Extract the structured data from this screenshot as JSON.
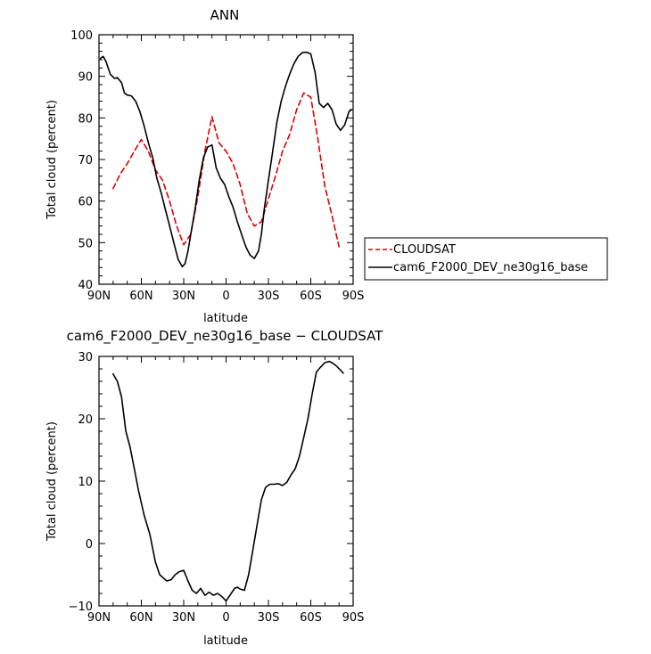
{
  "chart_data": [
    {
      "type": "line",
      "title": "ANN",
      "xlabel": "latitude",
      "ylabel": "Total cloud (percent)",
      "xlim": [
        90,
        -90
      ],
      "ylim": [
        40,
        100
      ],
      "xticks": [
        90,
        60,
        30,
        0,
        -30,
        -60,
        -90
      ],
      "xtick_labels": [
        "90N",
        "60N",
        "30N",
        "0",
        "30S",
        "60S",
        "90S"
      ],
      "yticks": [
        40,
        50,
        60,
        70,
        80,
        90,
        100
      ],
      "ytick_labels": [
        "40",
        "50",
        "60",
        "70",
        "80",
        "90",
        "100"
      ],
      "grid": false,
      "legend_position": "right-outside",
      "series": [
        {
          "name": "CLOUDSAT",
          "color": "#dd0000",
          "dash": "dashed",
          "x": [
            80,
            75,
            70,
            65,
            60,
            55,
            50,
            45,
            40,
            35,
            30,
            25,
            20,
            15,
            10,
            5,
            0,
            -5,
            -10,
            -15,
            -20,
            -25,
            -30,
            -35,
            -40,
            -45,
            -50,
            -55,
            -60,
            -65,
            -70,
            -75,
            -80
          ],
          "y": [
            63,
            66.5,
            69,
            72,
            74.8,
            72,
            67.5,
            65,
            60,
            54,
            49.5,
            52,
            61,
            72,
            80.3,
            74,
            72,
            69,
            64,
            57,
            54,
            55,
            60.5,
            66,
            72,
            76,
            82,
            86,
            85,
            75,
            63.5,
            56.5,
            49
          ]
        },
        {
          "name": "cam6_F2000_DEV_ne30g16_base",
          "color": "#000000",
          "dash": "solid",
          "x": [
            89,
            87,
            85,
            82,
            79,
            77,
            74,
            72,
            70,
            67,
            64,
            61,
            58,
            55,
            52,
            49,
            46,
            43,
            40,
            37,
            34,
            31,
            29,
            27,
            25,
            22,
            19,
            16,
            13,
            10,
            7,
            4,
            1,
            -2,
            -5,
            -8,
            -11,
            -14,
            -17,
            -20,
            -23,
            -25,
            -27,
            -30,
            -33,
            -36,
            -39,
            -42,
            -45,
            -48,
            -51,
            -54,
            -57,
            -60,
            -63,
            -66,
            -69,
            -72,
            -75,
            -78,
            -81,
            -84,
            -87,
            -89
          ],
          "y": [
            94.3,
            94.8,
            93.5,
            90.5,
            89.5,
            89.7,
            88.5,
            86,
            85.5,
            85.3,
            84,
            81.5,
            78,
            74,
            70.5,
            65.5,
            62,
            58,
            54,
            50,
            46,
            44.2,
            45,
            48,
            52,
            58,
            65,
            70.5,
            73,
            73.5,
            68,
            65.5,
            64,
            61,
            58.5,
            55,
            52,
            49,
            47,
            46.2,
            48,
            52,
            58,
            65,
            72,
            79,
            84,
            87.5,
            90.5,
            93,
            94.8,
            95.7,
            95.8,
            95.4,
            91,
            83.5,
            82.5,
            83.5,
            82,
            78.5,
            77,
            78.3,
            81.5,
            82
          ]
        }
      ],
      "legend": [
        {
          "label": "CLOUDSAT",
          "color": "#dd0000",
          "dash": "dashed"
        },
        {
          "label": "cam6_F2000_DEV_ne30g16_base",
          "color": "#000000",
          "dash": "solid"
        }
      ]
    },
    {
      "type": "line",
      "title": "cam6_F2000_DEV_ne30g16_base − CLOUDSAT",
      "xlabel": "latitude",
      "ylabel": "Total cloud (percent)",
      "xlim": [
        90,
        -90
      ],
      "ylim": [
        -10,
        30
      ],
      "xticks": [
        90,
        60,
        30,
        0,
        -30,
        -60,
        -90
      ],
      "xtick_labels": [
        "90N",
        "60N",
        "30N",
        "0",
        "30S",
        "60S",
        "90S"
      ],
      "yticks": [
        -10,
        0,
        10,
        20,
        30
      ],
      "ytick_labels": [
        "−10",
        "0",
        "10",
        "20",
        "30"
      ],
      "grid": false,
      "series": [
        {
          "name": "",
          "color": "#000000",
          "dash": "solid",
          "x": [
            80,
            77,
            74,
            71,
            68,
            65,
            62,
            58,
            54,
            50,
            47,
            44,
            42,
            39,
            36,
            33,
            30,
            27,
            24,
            21,
            18,
            15,
            12,
            9,
            6,
            3,
            0,
            -3,
            -6,
            -8,
            -10,
            -13,
            -16,
            -19,
            -22,
            -25,
            -28,
            -31,
            -34,
            -37,
            -40,
            -43,
            -46,
            -49,
            -52,
            -55,
            -58,
            -61,
            -64,
            -67,
            -70,
            -73,
            -75,
            -78,
            -81,
            -83
          ],
          "y": [
            27.2,
            26,
            23.5,
            18,
            15.5,
            12,
            8.5,
            4.5,
            1.5,
            -3,
            -5,
            -5.6,
            -6,
            -5.8,
            -5,
            -4.5,
            -4.3,
            -6,
            -7.5,
            -8,
            -7.2,
            -8.3,
            -7.8,
            -8.3,
            -8,
            -8.5,
            -9.2,
            -8.2,
            -7.2,
            -7,
            -7.3,
            -7.5,
            -5,
            -1,
            3,
            7,
            9,
            9.5,
            9.5,
            9.6,
            9.3,
            9.8,
            11,
            12,
            14,
            17,
            20,
            24,
            27.5,
            28.3,
            29,
            29.2,
            29,
            28.5,
            27.8,
            27.3
          ]
        }
      ]
    }
  ]
}
